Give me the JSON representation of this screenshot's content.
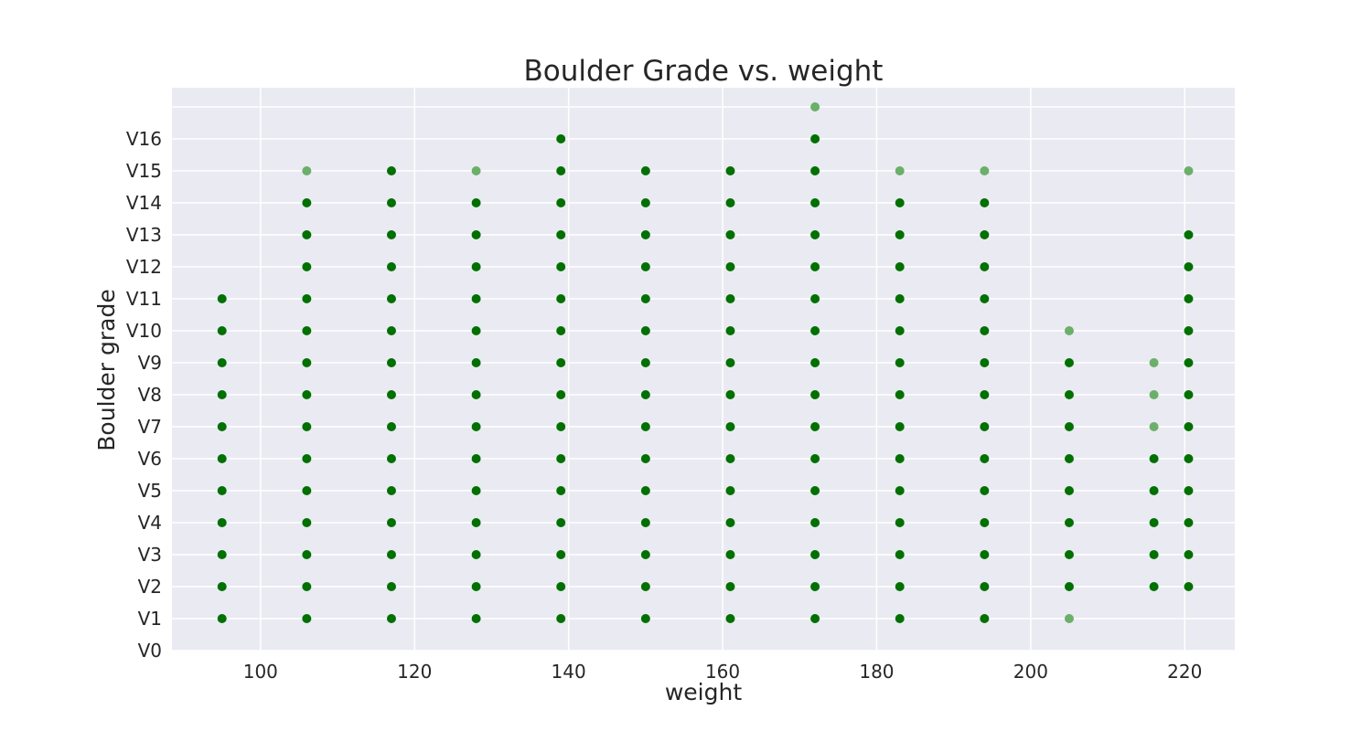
{
  "chart_data": {
    "type": "scatter",
    "title": "Boulder Grade vs. weight",
    "xlabel": "weight",
    "ylabel": "Boulder grade",
    "xlim": [
      88.5,
      226.5
    ],
    "ylim": [
      0,
      17.6
    ],
    "x_ticks": [
      100,
      120,
      140,
      160,
      180,
      200,
      220
    ],
    "y_ticks": [
      0,
      1,
      2,
      3,
      4,
      5,
      6,
      7,
      8,
      9,
      10,
      11,
      12,
      13,
      14,
      15,
      16
    ],
    "y_tick_labels": [
      "V0",
      "V1",
      "V2",
      "V3",
      "V4",
      "V5",
      "V6",
      "V7",
      "V8",
      "V9",
      "V10",
      "V11",
      "V12",
      "V13",
      "V14",
      "V15",
      "V16"
    ],
    "grid": true,
    "colors": {
      "background": "#eaeaf2",
      "grid": "#ffffff",
      "marker_dense": "#007000",
      "marker_sparse": "#6aaf6a"
    },
    "series": [
      {
        "points": [
          {
            "x": 95,
            "y": 1
          },
          {
            "x": 95,
            "y": 2
          },
          {
            "x": 95,
            "y": 3
          },
          {
            "x": 95,
            "y": 4
          },
          {
            "x": 95,
            "y": 5
          },
          {
            "x": 95,
            "y": 6
          },
          {
            "x": 95,
            "y": 7
          },
          {
            "x": 95,
            "y": 8
          },
          {
            "x": 95,
            "y": 9
          },
          {
            "x": 95,
            "y": 10
          },
          {
            "x": 95,
            "y": 11
          },
          {
            "x": 106,
            "y": 1
          },
          {
            "x": 106,
            "y": 2
          },
          {
            "x": 106,
            "y": 3
          },
          {
            "x": 106,
            "y": 4
          },
          {
            "x": 106,
            "y": 5
          },
          {
            "x": 106,
            "y": 6
          },
          {
            "x": 106,
            "y": 7
          },
          {
            "x": 106,
            "y": 8
          },
          {
            "x": 106,
            "y": 9
          },
          {
            "x": 106,
            "y": 10
          },
          {
            "x": 106,
            "y": 11
          },
          {
            "x": 106,
            "y": 12
          },
          {
            "x": 106,
            "y": 13
          },
          {
            "x": 106,
            "y": 14
          },
          {
            "x": 106,
            "y": 15,
            "sparse": true
          },
          {
            "x": 117,
            "y": 1
          },
          {
            "x": 117,
            "y": 2
          },
          {
            "x": 117,
            "y": 3
          },
          {
            "x": 117,
            "y": 4
          },
          {
            "x": 117,
            "y": 5
          },
          {
            "x": 117,
            "y": 6
          },
          {
            "x": 117,
            "y": 7
          },
          {
            "x": 117,
            "y": 8
          },
          {
            "x": 117,
            "y": 9
          },
          {
            "x": 117,
            "y": 10
          },
          {
            "x": 117,
            "y": 11
          },
          {
            "x": 117,
            "y": 12
          },
          {
            "x": 117,
            "y": 13
          },
          {
            "x": 117,
            "y": 14
          },
          {
            "x": 117,
            "y": 15
          },
          {
            "x": 128,
            "y": 1
          },
          {
            "x": 128,
            "y": 2
          },
          {
            "x": 128,
            "y": 3
          },
          {
            "x": 128,
            "y": 4
          },
          {
            "x": 128,
            "y": 5
          },
          {
            "x": 128,
            "y": 6
          },
          {
            "x": 128,
            "y": 7
          },
          {
            "x": 128,
            "y": 8
          },
          {
            "x": 128,
            "y": 9
          },
          {
            "x": 128,
            "y": 10
          },
          {
            "x": 128,
            "y": 11
          },
          {
            "x": 128,
            "y": 12
          },
          {
            "x": 128,
            "y": 13
          },
          {
            "x": 128,
            "y": 14
          },
          {
            "x": 128,
            "y": 15,
            "sparse": true
          },
          {
            "x": 139,
            "y": 1
          },
          {
            "x": 139,
            "y": 2
          },
          {
            "x": 139,
            "y": 3
          },
          {
            "x": 139,
            "y": 4
          },
          {
            "x": 139,
            "y": 5
          },
          {
            "x": 139,
            "y": 6
          },
          {
            "x": 139,
            "y": 7
          },
          {
            "x": 139,
            "y": 8
          },
          {
            "x": 139,
            "y": 9
          },
          {
            "x": 139,
            "y": 10
          },
          {
            "x": 139,
            "y": 11
          },
          {
            "x": 139,
            "y": 12
          },
          {
            "x": 139,
            "y": 13
          },
          {
            "x": 139,
            "y": 14
          },
          {
            "x": 139,
            "y": 15
          },
          {
            "x": 139,
            "y": 16
          },
          {
            "x": 150,
            "y": 1
          },
          {
            "x": 150,
            "y": 2
          },
          {
            "x": 150,
            "y": 3
          },
          {
            "x": 150,
            "y": 4
          },
          {
            "x": 150,
            "y": 5
          },
          {
            "x": 150,
            "y": 6
          },
          {
            "x": 150,
            "y": 7
          },
          {
            "x": 150,
            "y": 8
          },
          {
            "x": 150,
            "y": 9
          },
          {
            "x": 150,
            "y": 10
          },
          {
            "x": 150,
            "y": 11
          },
          {
            "x": 150,
            "y": 12
          },
          {
            "x": 150,
            "y": 13
          },
          {
            "x": 150,
            "y": 14
          },
          {
            "x": 150,
            "y": 15
          },
          {
            "x": 161,
            "y": 1
          },
          {
            "x": 161,
            "y": 2
          },
          {
            "x": 161,
            "y": 3
          },
          {
            "x": 161,
            "y": 4
          },
          {
            "x": 161,
            "y": 5
          },
          {
            "x": 161,
            "y": 6
          },
          {
            "x": 161,
            "y": 7
          },
          {
            "x": 161,
            "y": 8
          },
          {
            "x": 161,
            "y": 9
          },
          {
            "x": 161,
            "y": 10
          },
          {
            "x": 161,
            "y": 11
          },
          {
            "x": 161,
            "y": 12
          },
          {
            "x": 161,
            "y": 13
          },
          {
            "x": 161,
            "y": 14
          },
          {
            "x": 161,
            "y": 15
          },
          {
            "x": 172,
            "y": 1
          },
          {
            "x": 172,
            "y": 2
          },
          {
            "x": 172,
            "y": 3
          },
          {
            "x": 172,
            "y": 4
          },
          {
            "x": 172,
            "y": 5
          },
          {
            "x": 172,
            "y": 6
          },
          {
            "x": 172,
            "y": 7
          },
          {
            "x": 172,
            "y": 8
          },
          {
            "x": 172,
            "y": 9
          },
          {
            "x": 172,
            "y": 10
          },
          {
            "x": 172,
            "y": 11
          },
          {
            "x": 172,
            "y": 12
          },
          {
            "x": 172,
            "y": 13
          },
          {
            "x": 172,
            "y": 14
          },
          {
            "x": 172,
            "y": 15
          },
          {
            "x": 172,
            "y": 16
          },
          {
            "x": 172,
            "y": 17,
            "sparse": true
          },
          {
            "x": 183,
            "y": 1
          },
          {
            "x": 183,
            "y": 2
          },
          {
            "x": 183,
            "y": 3
          },
          {
            "x": 183,
            "y": 4
          },
          {
            "x": 183,
            "y": 5
          },
          {
            "x": 183,
            "y": 6
          },
          {
            "x": 183,
            "y": 7
          },
          {
            "x": 183,
            "y": 8
          },
          {
            "x": 183,
            "y": 9
          },
          {
            "x": 183,
            "y": 10
          },
          {
            "x": 183,
            "y": 11
          },
          {
            "x": 183,
            "y": 12
          },
          {
            "x": 183,
            "y": 13
          },
          {
            "x": 183,
            "y": 14
          },
          {
            "x": 183,
            "y": 15,
            "sparse": true
          },
          {
            "x": 194,
            "y": 1
          },
          {
            "x": 194,
            "y": 2
          },
          {
            "x": 194,
            "y": 3
          },
          {
            "x": 194,
            "y": 4
          },
          {
            "x": 194,
            "y": 5
          },
          {
            "x": 194,
            "y": 6
          },
          {
            "x": 194,
            "y": 7
          },
          {
            "x": 194,
            "y": 8
          },
          {
            "x": 194,
            "y": 9
          },
          {
            "x": 194,
            "y": 10
          },
          {
            "x": 194,
            "y": 11
          },
          {
            "x": 194,
            "y": 12
          },
          {
            "x": 194,
            "y": 13
          },
          {
            "x": 194,
            "y": 14
          },
          {
            "x": 194,
            "y": 15,
            "sparse": true
          },
          {
            "x": 205,
            "y": 1,
            "sparse": true
          },
          {
            "x": 205,
            "y": 2
          },
          {
            "x": 205,
            "y": 3
          },
          {
            "x": 205,
            "y": 4
          },
          {
            "x": 205,
            "y": 5
          },
          {
            "x": 205,
            "y": 6
          },
          {
            "x": 205,
            "y": 7
          },
          {
            "x": 205,
            "y": 8
          },
          {
            "x": 205,
            "y": 9
          },
          {
            "x": 205,
            "y": 10,
            "sparse": true
          },
          {
            "x": 216,
            "y": 2
          },
          {
            "x": 216,
            "y": 3
          },
          {
            "x": 216,
            "y": 4
          },
          {
            "x": 216,
            "y": 5
          },
          {
            "x": 216,
            "y": 6
          },
          {
            "x": 216,
            "y": 7,
            "sparse": true
          },
          {
            "x": 216,
            "y": 8,
            "sparse": true
          },
          {
            "x": 216,
            "y": 9,
            "sparse": true
          },
          {
            "x": 220.5,
            "y": 2
          },
          {
            "x": 220.5,
            "y": 3
          },
          {
            "x": 220.5,
            "y": 4
          },
          {
            "x": 220.5,
            "y": 5
          },
          {
            "x": 220.5,
            "y": 6
          },
          {
            "x": 220.5,
            "y": 7
          },
          {
            "x": 220.5,
            "y": 8
          },
          {
            "x": 220.5,
            "y": 9
          },
          {
            "x": 220.5,
            "y": 10
          },
          {
            "x": 220.5,
            "y": 11
          },
          {
            "x": 220.5,
            "y": 12
          },
          {
            "x": 220.5,
            "y": 13
          },
          {
            "x": 220.5,
            "y": 15,
            "sparse": true
          }
        ]
      }
    ]
  }
}
